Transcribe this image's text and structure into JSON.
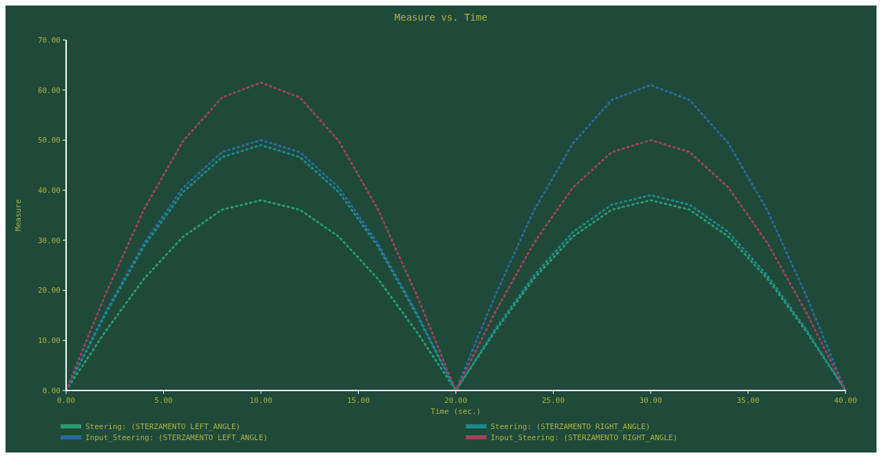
{
  "chart_data": {
    "type": "line",
    "title": "Measure vs. Time",
    "xlabel": "Time (sec.)",
    "ylabel": "Measure",
    "x": [
      0,
      2,
      4,
      6,
      8,
      10,
      12,
      14,
      16,
      18,
      20,
      22,
      24,
      26,
      28,
      30,
      32,
      34,
      36,
      38,
      40
    ],
    "xlim": [
      0,
      40
    ],
    "xticks": [
      {
        "value": 0,
        "label": "0.00"
      },
      {
        "value": 5,
        "label": "5.00"
      },
      {
        "value": 10,
        "label": "10.00"
      },
      {
        "value": 15,
        "label": "15.00"
      },
      {
        "value": 20,
        "label": "20.00"
      },
      {
        "value": 25,
        "label": "25.00"
      },
      {
        "value": 30,
        "label": "30.00"
      },
      {
        "value": 35,
        "label": "35.00"
      },
      {
        "value": 40,
        "label": "40.00"
      }
    ],
    "ylim": [
      0,
      70
    ],
    "yticks": [
      {
        "value": 0,
        "label": "0.00"
      },
      {
        "value": 10,
        "label": "10.00"
      },
      {
        "value": 20,
        "label": "20.00"
      },
      {
        "value": 30,
        "label": "30.00"
      },
      {
        "value": 40,
        "label": "40.00"
      },
      {
        "value": 50,
        "label": "50.00"
      },
      {
        "value": 60,
        "label": "60.00"
      },
      {
        "value": 70,
        "label": "70.00"
      }
    ],
    "line_style": "dotted",
    "legend": "bottom",
    "series": [
      {
        "name": "Steering: (STERZAMENTO LEFT_ANGLE)",
        "color": "#2a9a70",
        "values": [
          0,
          11.7,
          22.3,
          30.7,
          36.1,
          38,
          36.1,
          30.7,
          22.3,
          11.7,
          0,
          11.7,
          22.3,
          30.7,
          36.1,
          38,
          36.1,
          30.7,
          22.3,
          11.7,
          0
        ]
      },
      {
        "name": "Input_Steering: (STERZAMENTO LEFT_ANGLE)",
        "color": "#2a6a9a",
        "values": [
          0,
          15.5,
          29.4,
          40.5,
          47.6,
          50,
          47.6,
          40.5,
          29.4,
          15.5,
          0,
          18.8,
          35.9,
          49.3,
          58.0,
          61,
          58.0,
          49.3,
          35.9,
          18.8,
          0
        ]
      },
      {
        "name": "Steering: (STERZAMENTO RIGHT_ANGLE)",
        "color": "#1a8a8a",
        "values": [
          0,
          15.1,
          28.8,
          39.6,
          46.6,
          49,
          46.6,
          39.6,
          28.8,
          15.1,
          0,
          12.1,
          22.9,
          31.6,
          37.1,
          39,
          37.1,
          31.6,
          22.9,
          12.1,
          0
        ]
      },
      {
        "name": "Input_Steering: (STERZAMENTO RIGHT_ANGLE)",
        "color": "#a04060",
        "values": [
          0,
          19.0,
          36.2,
          49.8,
          58.5,
          61.5,
          58.5,
          49.8,
          36.2,
          19.0,
          0,
          15.5,
          29.4,
          40.5,
          47.6,
          50,
          47.6,
          40.5,
          29.4,
          15.5,
          0
        ]
      }
    ]
  }
}
